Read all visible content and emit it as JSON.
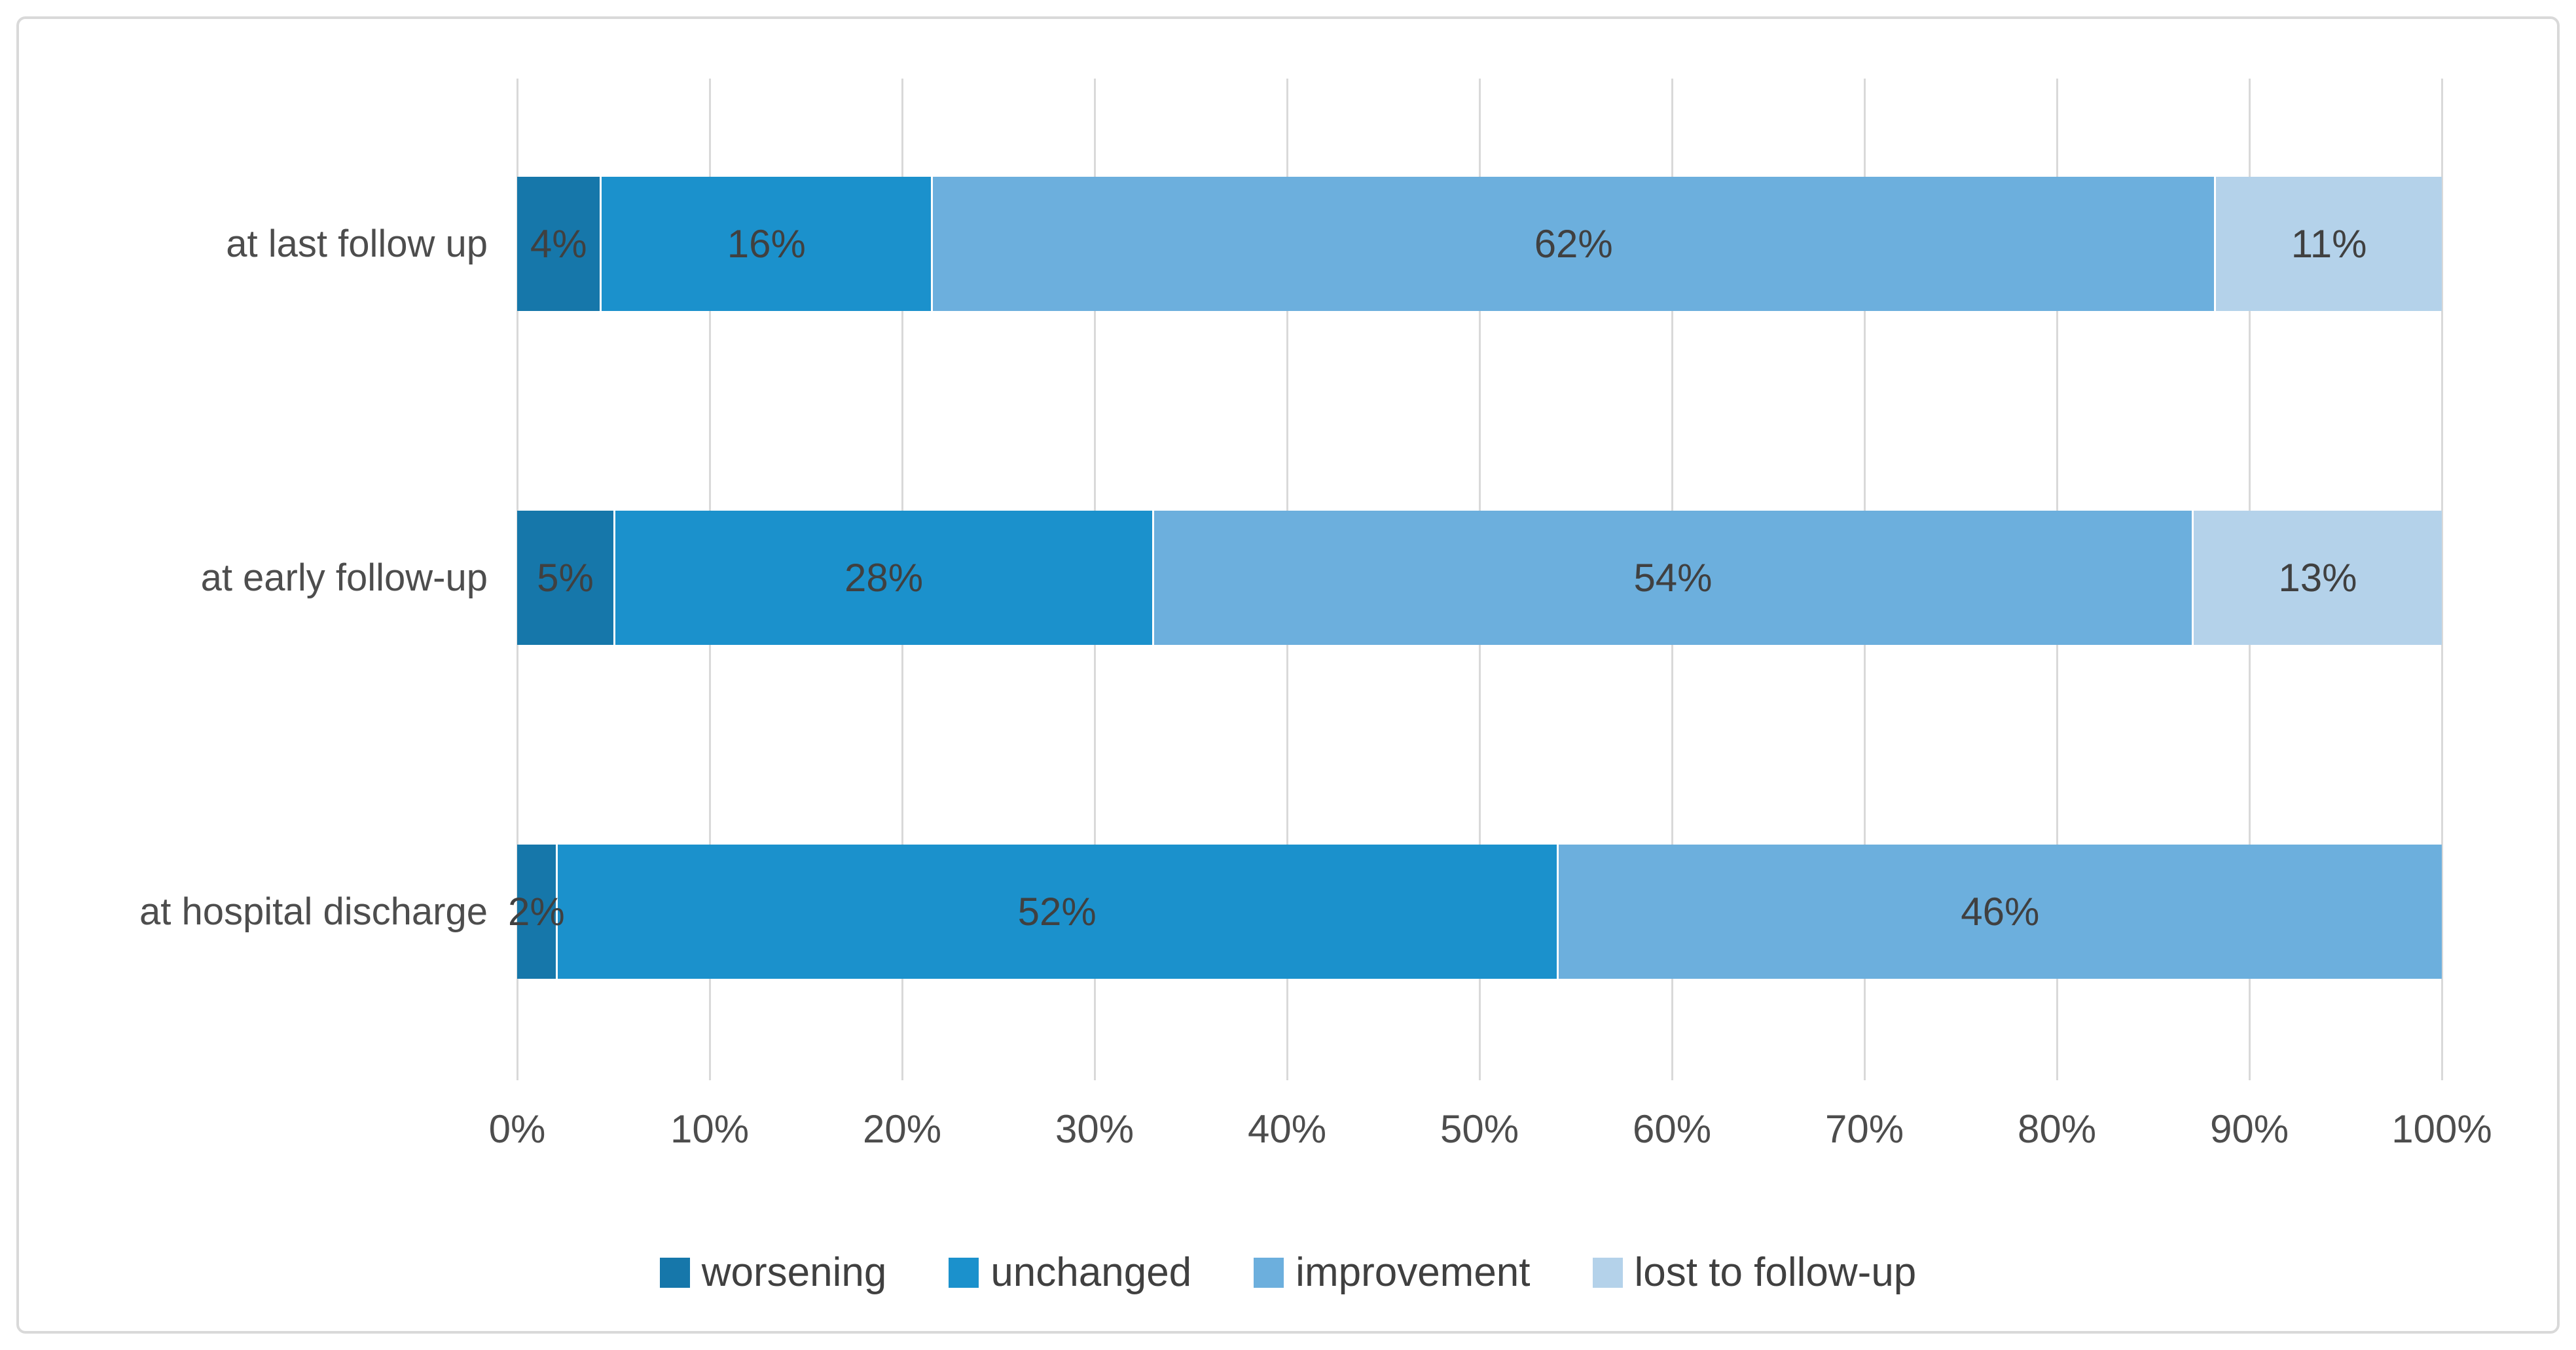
{
  "colors": {
    "worsening": "#1677AA",
    "unchanged": "#1B91CC",
    "improvement": "#6CAFDD",
    "lost_to_follow_up": "#B4D2EA",
    "gridline": "#d9d9d9",
    "frame_border": "#d9d9d9",
    "data_label_text": "#404040",
    "axis_text": "#4d4d4d",
    "background": "#ffffff"
  },
  "chart_data": {
    "type": "bar",
    "orientation": "horizontal",
    "stacking": "100%",
    "title": "",
    "xlabel": "",
    "ylabel": "",
    "xlim": [
      0,
      100
    ],
    "grid": "vertical",
    "legend_position": "bottom",
    "categories": [
      "at last follow up",
      "at early follow-up",
      "at hospital discharge"
    ],
    "series": [
      {
        "name": "worsening",
        "color": "#1677AA",
        "values": [
          4,
          5,
          2
        ]
      },
      {
        "name": "unchanged",
        "color": "#1B91CC",
        "values": [
          16,
          28,
          52
        ]
      },
      {
        "name": "improvement",
        "color": "#6CAFDD",
        "values": [
          62,
          54,
          46
        ]
      },
      {
        "name": "lost to follow-up",
        "color": "#B4D2EA",
        "values": [
          11,
          13,
          0
        ]
      }
    ],
    "data_labels": [
      [
        "4%",
        "16%",
        "62%",
        "11%"
      ],
      [
        "5%",
        "28%",
        "54%",
        "13%"
      ],
      [
        "2%",
        "52%",
        "46%",
        ""
      ]
    ],
    "x_ticks": [
      "0%",
      "10%",
      "20%",
      "30%",
      "40%",
      "50%",
      "60%",
      "70%",
      "80%",
      "90%",
      "100%"
    ],
    "legend": [
      "worsening",
      "unchanged",
      "improvement",
      "lost to follow-up"
    ]
  }
}
